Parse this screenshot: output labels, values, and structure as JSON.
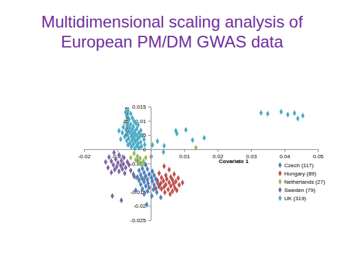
{
  "chart_data": {
    "type": "scatter",
    "title": "Multidimensional scaling analysis of European PM/DM GWAS data",
    "x_label": "Covariate 1",
    "y_label": "Covariate 2",
    "xlim": [
      -0.02,
      0.05
    ],
    "xticks": [
      -0.02,
      -0.01,
      0,
      0.01,
      0.02,
      0.03,
      0.04,
      0.05
    ],
    "ylim": [
      -0.025,
      0.015
    ],
    "yticks": [
      -0.025,
      -0.02,
      -0.015,
      -0.01,
      -0.005,
      0,
      0.005,
      0.01,
      0.015
    ],
    "grid": false,
    "legend": "bottom-right",
    "marker": "diamond",
    "series": [
      {
        "name": "Czech (117)",
        "color": "#4f81bd",
        "x": [
          -0.004,
          -0.003,
          -0.0015,
          -0.0025,
          -0.001,
          -0.0035,
          0.0005,
          -0.002,
          -0.0005,
          -0.003,
          0.001,
          -0.0015,
          -0.004,
          0.0002,
          -0.0025,
          0.0015,
          -0.001,
          -0.0035,
          0.0005,
          -0.002,
          0.002,
          -0.0008,
          -0.003,
          0.001,
          -0.0015,
          0.0025,
          -0.0005,
          -0.0025,
          0.0008,
          -0.001,
          0.0018,
          -0.002,
          0.0003,
          -0.0045,
          0.003,
          -0.0012,
          -0.0052
        ],
        "values": [
          -0.004,
          -0.005,
          -0.0055,
          -0.0068,
          -0.007,
          -0.0075,
          -0.0078,
          -0.0082,
          -0.0088,
          -0.009,
          -0.0092,
          -0.0095,
          -0.0098,
          -0.01,
          -0.0104,
          -0.0105,
          -0.0108,
          -0.011,
          -0.0112,
          -0.0115,
          -0.0118,
          -0.012,
          -0.0124,
          -0.0126,
          -0.013,
          -0.0132,
          -0.0135,
          -0.014,
          -0.0142,
          -0.0148,
          -0.0152,
          -0.0158,
          -0.0165,
          -0.0145,
          -0.017,
          -0.0195,
          -0.0088
        ]
      },
      {
        "name": "Hungary (89)",
        "color": "#c0504d",
        "x": [
          0.004,
          0.0055,
          0.0025,
          0.007,
          0.0045,
          0.006,
          0.0032,
          0.0082,
          0.0048,
          0.0065,
          0.002,
          0.0038,
          0.0075,
          0.0055,
          0.003,
          0.0068,
          0.0045,
          0.0085,
          0.0025,
          0.006,
          0.004,
          0.0072,
          0.0032,
          0.0052,
          0.0065,
          0.0042,
          0.0095,
          0.0015,
          0.0058,
          0.0078
        ],
        "values": [
          -0.006,
          -0.0072,
          -0.0085,
          -0.0088,
          -0.0092,
          -0.0098,
          -0.01,
          -0.0102,
          -0.0105,
          -0.0108,
          -0.011,
          -0.0112,
          -0.0114,
          -0.0117,
          -0.012,
          -0.0122,
          -0.0125,
          -0.0126,
          -0.0128,
          -0.013,
          -0.0133,
          -0.0136,
          -0.014,
          -0.0142,
          -0.0148,
          -0.0152,
          -0.0118,
          -0.0138,
          -0.0158,
          -0.0145
        ]
      },
      {
        "name": "Netherlands (27)",
        "color": "#9bbb59",
        "x": [
          -0.005,
          -0.004,
          -0.0032,
          -0.0045,
          -0.0022,
          -0.0036,
          -0.006,
          -0.0028,
          0.0135,
          -0.0015
        ],
        "values": [
          -0.0015,
          -0.0025,
          -0.0032,
          -0.0038,
          -0.0042,
          -0.0048,
          -0.003,
          -0.0055,
          0.0005,
          -0.003
        ]
      },
      {
        "name": "Sweden (79)",
        "color": "#8064a2",
        "x": [
          -0.011,
          -0.0095,
          -0.0125,
          -0.008,
          -0.0105,
          -0.0088,
          -0.0118,
          -0.007,
          -0.0098,
          -0.0082,
          -0.0112,
          -0.0065,
          -0.009,
          -0.0102,
          -0.0075,
          -0.0128,
          -0.0085,
          -0.0108,
          -0.006,
          -0.0095,
          -0.0118,
          -0.0078,
          -0.0135,
          -0.0115,
          -0.0088,
          -0.005
        ],
        "values": [
          -0.0012,
          -0.002,
          -0.0028,
          -0.003,
          -0.0035,
          -0.004,
          -0.0042,
          -0.0045,
          -0.0048,
          -0.0052,
          -0.0055,
          -0.0055,
          -0.0058,
          -0.0062,
          -0.0065,
          -0.0065,
          -0.007,
          -0.0072,
          -0.0075,
          -0.0078,
          -0.0082,
          -0.0085,
          -0.0045,
          -0.0165,
          -0.018,
          -0.0095
        ]
      },
      {
        "name": "UK (319)",
        "color": "#4bacc6",
        "x": [
          -0.0075,
          -0.0068,
          -0.0072,
          -0.006,
          -0.0055,
          -0.0065,
          -0.005,
          -0.0078,
          -0.0045,
          -0.006,
          -0.007,
          -0.0038,
          -0.0052,
          -0.0082,
          -0.0064,
          -0.0042,
          -0.0056,
          -0.0074,
          -0.003,
          -0.0048,
          -0.0062,
          -0.0085,
          -0.0036,
          -0.0054,
          -0.007,
          -0.0044,
          -0.0025,
          -0.0058,
          -0.0078,
          -0.0034,
          -0.005,
          -0.0066,
          -0.004,
          -0.002,
          -0.0056,
          -0.0072,
          -0.0046,
          -0.003,
          -0.0062,
          -0.0038,
          -0.0052,
          -0.0018,
          -0.0068,
          -0.0042,
          -0.0028,
          -0.0058,
          -0.0035,
          -0.0048,
          -0.009,
          -0.0095,
          0.0005,
          0.002,
          0.004,
          0.0075,
          0.0078,
          0.0105,
          0.0125,
          0.016,
          0.033,
          0.035,
          0.039,
          0.041,
          0.043,
          0.0455,
          0.044,
          0.0038
        ],
        "values": [
          0.013,
          0.0135,
          0.0118,
          0.0125,
          0.011,
          0.0105,
          0.0098,
          0.0095,
          0.0092,
          0.0088,
          0.0085,
          0.0085,
          0.008,
          0.0078,
          0.0075,
          0.0072,
          0.007,
          0.0068,
          0.0066,
          0.0063,
          0.006,
          0.0058,
          0.0057,
          0.0054,
          0.0052,
          0.005,
          0.0048,
          0.0046,
          0.0044,
          0.0043,
          0.004,
          0.0038,
          0.0035,
          0.0034,
          0.0032,
          0.003,
          0.0028,
          0.0025,
          0.0022,
          0.002,
          0.0018,
          0.0016,
          0.0015,
          0.0012,
          0.001,
          0.0008,
          0.0004,
          0.0002,
          0.0035,
          0.0065,
          0.0015,
          0.0028,
          0.0012,
          0.0065,
          0.0055,
          0.0068,
          0.0032,
          0.004,
          0.0128,
          0.0125,
          0.0132,
          0.0122,
          0.0127,
          0.0118,
          0.0108,
          -0.001
        ]
      }
    ]
  }
}
